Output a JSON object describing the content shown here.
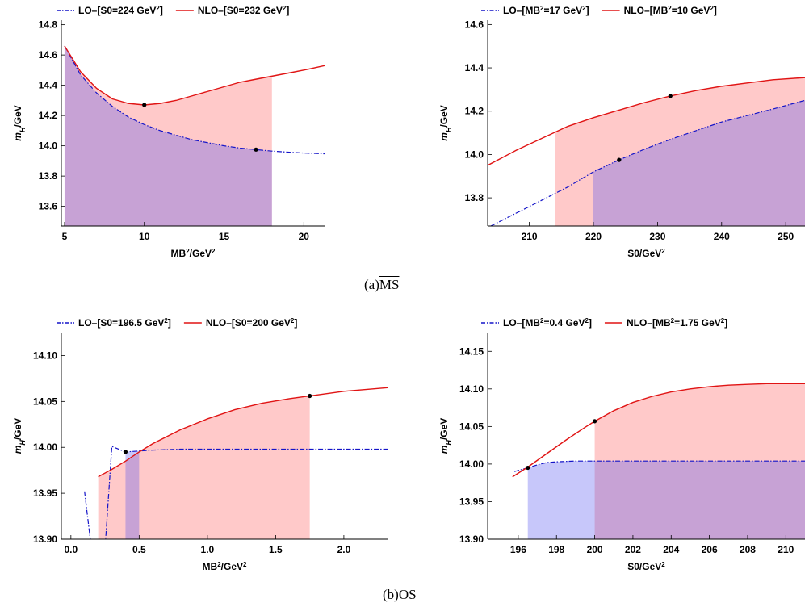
{
  "panel_labels": {
    "a_prefix": "(a)",
    "a_scheme": "MS",
    "b": "(b)OS"
  },
  "colors": {
    "lo": "#1414c8",
    "nlo": "#e01414",
    "lo_fill": "rgba(80,80,240,0.32)",
    "nlo_fill": "rgba(255,112,112,0.38)"
  },
  "chart_data": [
    {
      "id": "a-left",
      "type": "line",
      "xlabel": "MB²/GeV²",
      "ylabel": "mH/GeV",
      "xlim": [
        4.8,
        21.3
      ],
      "ylim": [
        13.47,
        14.83
      ],
      "xticks": [
        5,
        10,
        15,
        20
      ],
      "xtick_labels": [
        "5",
        "10",
        "15",
        "20"
      ],
      "yticks": [
        13.6,
        13.8,
        14.0,
        14.2,
        14.4,
        14.6,
        14.8
      ],
      "ytick_labels": [
        "13.6",
        "13.8",
        "14.0",
        "14.2",
        "14.4",
        "14.6",
        "14.8"
      ],
      "series": [
        {
          "name": "LO–[S0=224 GeV²]",
          "style": "dashdot",
          "x": [
            5,
            6,
            7,
            8,
            9,
            10,
            11,
            12,
            13,
            14,
            15,
            16,
            17,
            18,
            19,
            20,
            21.3
          ],
          "y": [
            14.66,
            14.47,
            14.35,
            14.26,
            14.19,
            14.14,
            14.1,
            14.07,
            14.04,
            14.02,
            14.0,
            13.985,
            13.975,
            13.965,
            13.958,
            13.952,
            13.947
          ],
          "fill_to": 18
        },
        {
          "name": "NLO–[S0=232 GeV²]",
          "style": "solid",
          "x": [
            5,
            6,
            7,
            8,
            9,
            10,
            11,
            12,
            13,
            14,
            15,
            16,
            17,
            18,
            19,
            20,
            21.3
          ],
          "y": [
            14.66,
            14.49,
            14.38,
            14.31,
            14.28,
            14.27,
            14.28,
            14.3,
            14.33,
            14.36,
            14.39,
            14.42,
            14.44,
            14.46,
            14.48,
            14.5,
            14.53
          ],
          "fill_to": 18
        }
      ],
      "points": [
        {
          "x": 10,
          "y": 14.27
        },
        {
          "x": 17,
          "y": 13.975
        }
      ]
    },
    {
      "id": "a-right",
      "type": "line",
      "xlabel": "S0/GeV²",
      "ylabel": "mH/GeV",
      "xlim": [
        203.5,
        253
      ],
      "ylim": [
        13.67,
        14.62
      ],
      "xticks": [
        210,
        220,
        230,
        240,
        250
      ],
      "xtick_labels": [
        "210",
        "220",
        "230",
        "240",
        "250"
      ],
      "yticks": [
        13.8,
        14.0,
        14.2,
        14.4,
        14.6
      ],
      "ytick_labels": [
        "13.8",
        "14.0",
        "14.2",
        "14.4",
        "14.6"
      ],
      "series": [
        {
          "name": "LO–[MB²=17 GeV²]",
          "style": "dashdot",
          "x": [
            204,
            208,
            212,
            216,
            220,
            224,
            228,
            232,
            236,
            240,
            244,
            248,
            253
          ],
          "y": [
            13.67,
            13.73,
            13.79,
            13.85,
            13.92,
            13.975,
            14.025,
            14.07,
            14.11,
            14.15,
            14.18,
            14.21,
            14.25
          ],
          "fill_from": 220
        },
        {
          "name": "NLO–[MB²=10 GeV²]",
          "style": "solid",
          "x": [
            203.5,
            208,
            212,
            216,
            220,
            224,
            228,
            232,
            236,
            240,
            244,
            248,
            253
          ],
          "y": [
            13.95,
            14.02,
            14.075,
            14.13,
            14.17,
            14.205,
            14.24,
            14.27,
            14.295,
            14.315,
            14.33,
            14.345,
            14.355
          ],
          "fill_from": 214
        }
      ],
      "points": [
        {
          "x": 232,
          "y": 14.27
        },
        {
          "x": 224,
          "y": 13.975
        }
      ]
    },
    {
      "id": "b-left",
      "type": "line",
      "xlabel": "MB²/GeV²",
      "ylabel": "mH/GeV",
      "xlim": [
        -0.07,
        2.32
      ],
      "ylim": [
        13.9,
        14.125
      ],
      "xticks": [
        0.0,
        0.5,
        1.0,
        1.5,
        2.0
      ],
      "xtick_labels": [
        "0.0",
        "0.5",
        "1.0",
        "1.5",
        "2.0"
      ],
      "yticks": [
        13.9,
        13.95,
        14.0,
        14.05,
        14.1
      ],
      "ytick_labels": [
        "13.90",
        "13.95",
        "14.00",
        "14.05",
        "14.10"
      ],
      "series": [
        {
          "name": "LO–[S0=196.5 GeV²]",
          "style": "dashdot",
          "x": [
            0.1,
            0.15,
            0.25,
            0.3,
            0.4,
            0.5,
            0.6,
            0.8,
            1.0,
            1.5,
            2.0,
            2.32
          ],
          "y": [
            13.952,
            13.89,
            13.89,
            14.001,
            13.995,
            13.996,
            13.997,
            13.998,
            13.998,
            13.998,
            13.998,
            13.998
          ],
          "fill_from": 0.4,
          "fill_to": 0.5
        },
        {
          "name": "NLO–[S0=200 GeV²]",
          "style": "solid",
          "x": [
            0.2,
            0.3,
            0.4,
            0.5,
            0.6,
            0.8,
            1.0,
            1.2,
            1.4,
            1.6,
            1.75,
            2.0,
            2.32
          ],
          "y": [
            13.968,
            13.976,
            13.985,
            13.995,
            14.004,
            14.019,
            14.031,
            14.041,
            14.048,
            14.053,
            14.056,
            14.061,
            14.065
          ],
          "fill_from": 0.2,
          "fill_to": 1.75
        }
      ],
      "points": [
        {
          "x": 0.4,
          "y": 13.995
        },
        {
          "x": 1.75,
          "y": 14.056
        }
      ]
    },
    {
      "id": "b-right",
      "type": "line",
      "xlabel": "S0/GeV²",
      "ylabel": "mH/GeV",
      "xlim": [
        194.4,
        211
      ],
      "ylim": [
        13.9,
        14.175
      ],
      "xticks": [
        196,
        198,
        200,
        202,
        204,
        206,
        208,
        210
      ],
      "xtick_labels": [
        "196",
        "198",
        "200",
        "202",
        "204",
        "206",
        "208",
        "210"
      ],
      "yticks": [
        13.9,
        13.95,
        14.0,
        14.05,
        14.1,
        14.15
      ],
      "ytick_labels": [
        "13.90",
        "13.95",
        "14.00",
        "14.05",
        "14.10",
        "14.15"
      ],
      "series": [
        {
          "name": "LO–[MB²=0.4 GeV²]",
          "style": "dashdot",
          "x": [
            195.8,
            196.5,
            197,
            197.5,
            198,
            199,
            200,
            202,
            205,
            211
          ],
          "y": [
            13.99,
            13.995,
            13.999,
            14.002,
            14.003,
            14.004,
            14.004,
            14.004,
            14.004,
            14.004
          ],
          "fill_from": 196.5
        },
        {
          "name": "NLO–[MB²=1.75 GeV²]",
          "style": "solid",
          "x": [
            195.7,
            196.5,
            197.5,
            198.5,
            199.5,
            200,
            201,
            202,
            203,
            204,
            205,
            206,
            207,
            208,
            209,
            210,
            211
          ],
          "y": [
            13.983,
            13.996,
            14.014,
            14.032,
            14.049,
            14.057,
            14.071,
            14.082,
            14.09,
            14.096,
            14.1,
            14.103,
            14.105,
            14.106,
            14.107,
            14.107,
            14.107
          ],
          "fill_from": 200
        }
      ],
      "points": [
        {
          "x": 196.5,
          "y": 13.995
        },
        {
          "x": 200,
          "y": 14.057
        }
      ]
    }
  ]
}
